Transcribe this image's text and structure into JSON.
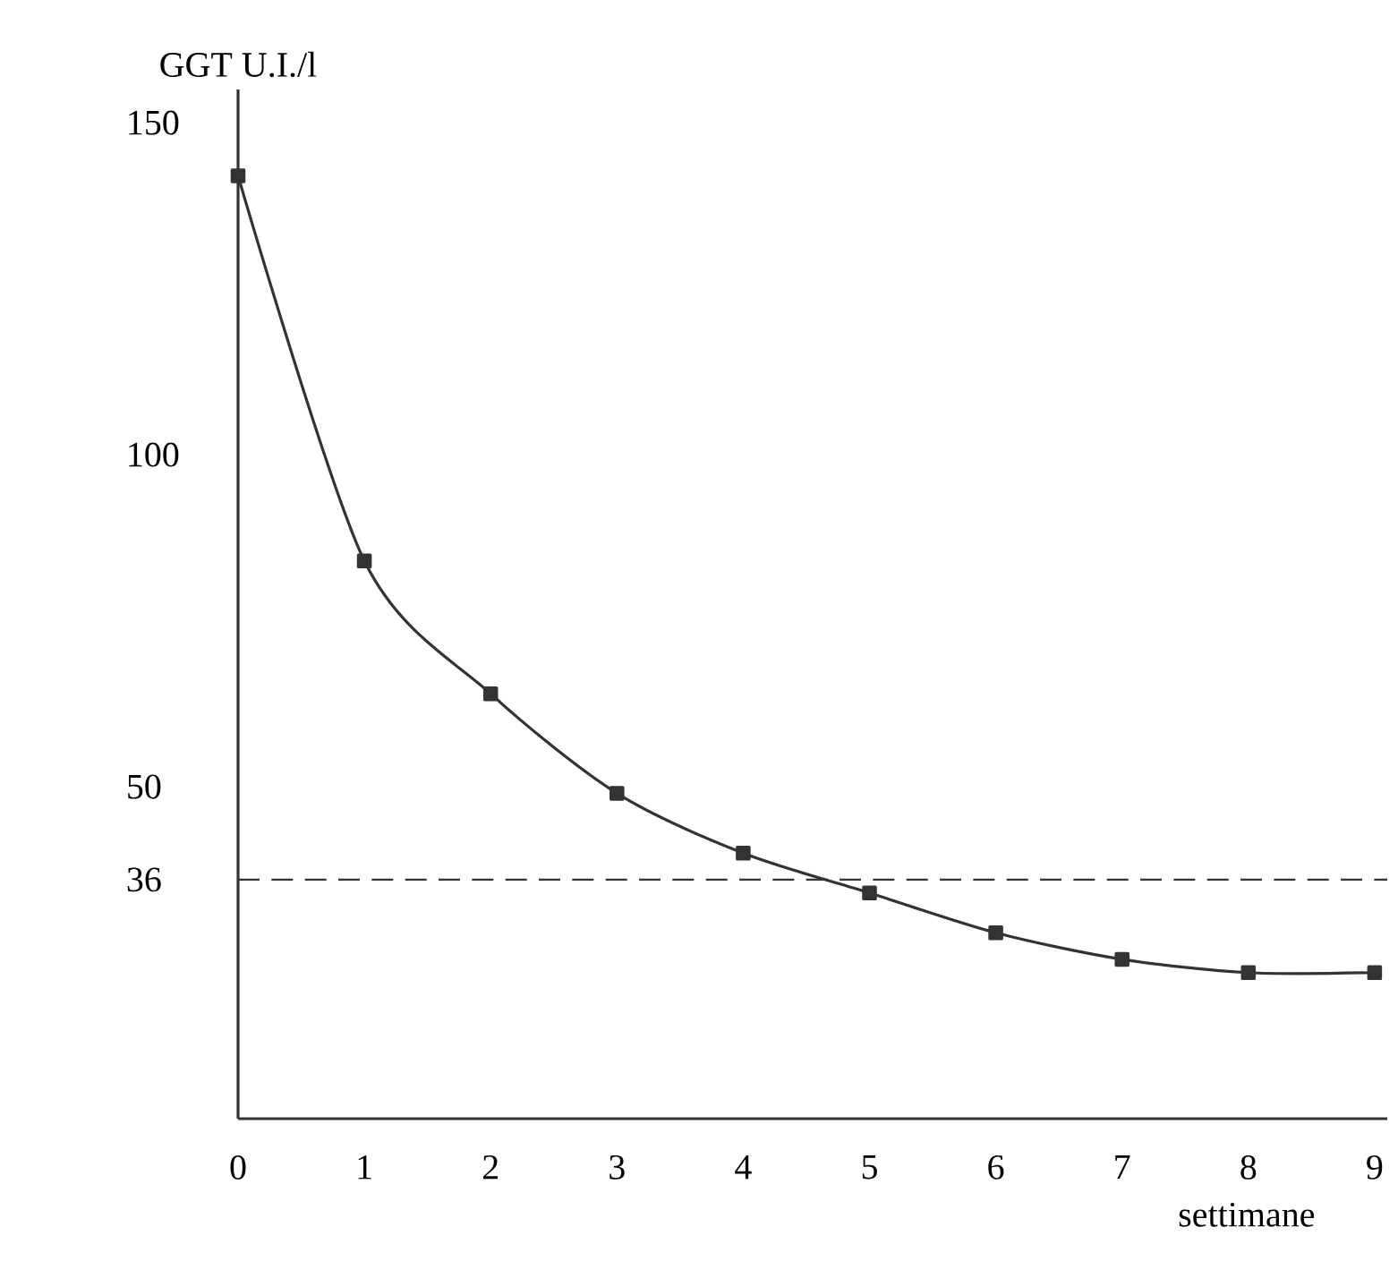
{
  "chart_data": {
    "type": "line",
    "ylabel": "GGT U.I./l",
    "xlabel": "settimane",
    "x": [
      0,
      1,
      2,
      3,
      4,
      5,
      6,
      7,
      8,
      9
    ],
    "series": [
      {
        "color": "#333333",
        "values": [
          142,
          84,
          64,
          49,
          40,
          34,
          28,
          24,
          22,
          22
        ]
      }
    ],
    "xlim": [
      0,
      9.1
    ],
    "ylim": [
      0,
      155
    ],
    "xticks": [
      0,
      1,
      2,
      3,
      4,
      5,
      6,
      7,
      8,
      9
    ],
    "yticks": [
      36,
      50,
      100,
      150
    ],
    "ref_lines": [
      {
        "axis": "y",
        "value": 36,
        "line_style": "dashed"
      }
    ],
    "marker": "square",
    "line_style": "solid",
    "grid": false
  }
}
